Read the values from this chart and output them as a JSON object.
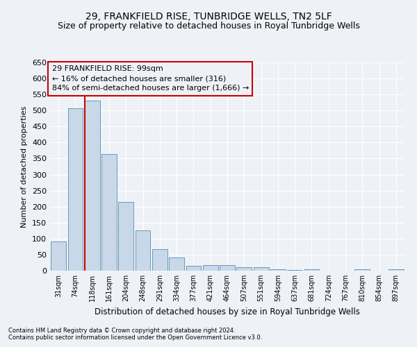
{
  "title1": "29, FRANKFIELD RISE, TUNBRIDGE WELLS, TN2 5LF",
  "title2": "Size of property relative to detached houses in Royal Tunbridge Wells",
  "xlabel": "Distribution of detached houses by size in Royal Tunbridge Wells",
  "ylabel": "Number of detached properties",
  "footnote1": "Contains HM Land Registry data © Crown copyright and database right 2024.",
  "footnote2": "Contains public sector information licensed under the Open Government Licence v3.0.",
  "categories": [
    "31sqm",
    "74sqm",
    "118sqm",
    "161sqm",
    "204sqm",
    "248sqm",
    "291sqm",
    "334sqm",
    "377sqm",
    "421sqm",
    "464sqm",
    "507sqm",
    "551sqm",
    "594sqm",
    "637sqm",
    "681sqm",
    "724sqm",
    "767sqm",
    "810sqm",
    "854sqm",
    "897sqm"
  ],
  "values": [
    90,
    507,
    530,
    365,
    215,
    125,
    67,
    42,
    15,
    17,
    18,
    11,
    10,
    5,
    2,
    5,
    1,
    1,
    4,
    1,
    4
  ],
  "bar_color": "#c8d8e8",
  "bar_edge_color": "#6699bb",
  "property_line_color": "#cc0000",
  "annotation_text": "29 FRANKFIELD RISE: 99sqm\n← 16% of detached houses are smaller (316)\n84% of semi-detached houses are larger (1,666) →",
  "annotation_box_color": "#cc0000",
  "ylim": [
    0,
    650
  ],
  "yticks": [
    0,
    50,
    100,
    150,
    200,
    250,
    300,
    350,
    400,
    450,
    500,
    550,
    600,
    650
  ],
  "background_color": "#eef2f7",
  "grid_color": "#ffffff",
  "title1_fontsize": 10,
  "title2_fontsize": 9
}
